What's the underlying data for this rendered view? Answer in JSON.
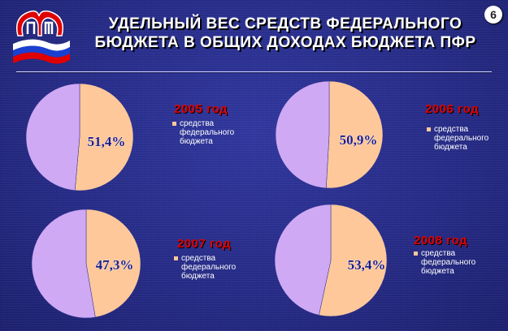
{
  "title": {
    "line1": "УДЕЛЬНЫЙ ВЕС СРЕДСТВ ФЕДЕРАЛЬНОГО",
    "line2": "БЮДЖЕТА В ОБЩИХ ДОХОДАХ БЮДЖЕТА ПФР"
  },
  "page_number": "6",
  "colors": {
    "federal": "#ffc89a",
    "other": "#cfa9f4",
    "year_label": "#e00000",
    "background": "#2a2f8e"
  },
  "chart_data": [
    {
      "type": "pie",
      "title": "2005 год",
      "legend": [
        "средства федерального бюджета"
      ],
      "slices": [
        {
          "name": "средства федерального бюджета",
          "value": 51.4,
          "label": "51,4%"
        },
        {
          "name": "",
          "value": 48.6
        }
      ]
    },
    {
      "type": "pie",
      "title": "2006 год",
      "legend": [
        "средства федерального бюджета"
      ],
      "slices": [
        {
          "name": "средства федерального бюджета",
          "value": 50.9,
          "label": "50,9%"
        },
        {
          "name": "",
          "value": 49.1
        }
      ]
    },
    {
      "type": "pie",
      "title": "2007 год",
      "legend": [
        "средства федерального бюджета"
      ],
      "slices": [
        {
          "name": "средства федерального бюджета",
          "value": 47.3,
          "label": "47,3%"
        },
        {
          "name": "",
          "value": 52.7
        }
      ]
    },
    {
      "type": "pie",
      "title": "2008 год",
      "legend": [
        "средства федерального бюджета"
      ],
      "slices": [
        {
          "name": "средства федерального бюджета",
          "value": 53.4,
          "label": "53,4%"
        },
        {
          "name": "",
          "value": 46.6
        }
      ]
    }
  ]
}
